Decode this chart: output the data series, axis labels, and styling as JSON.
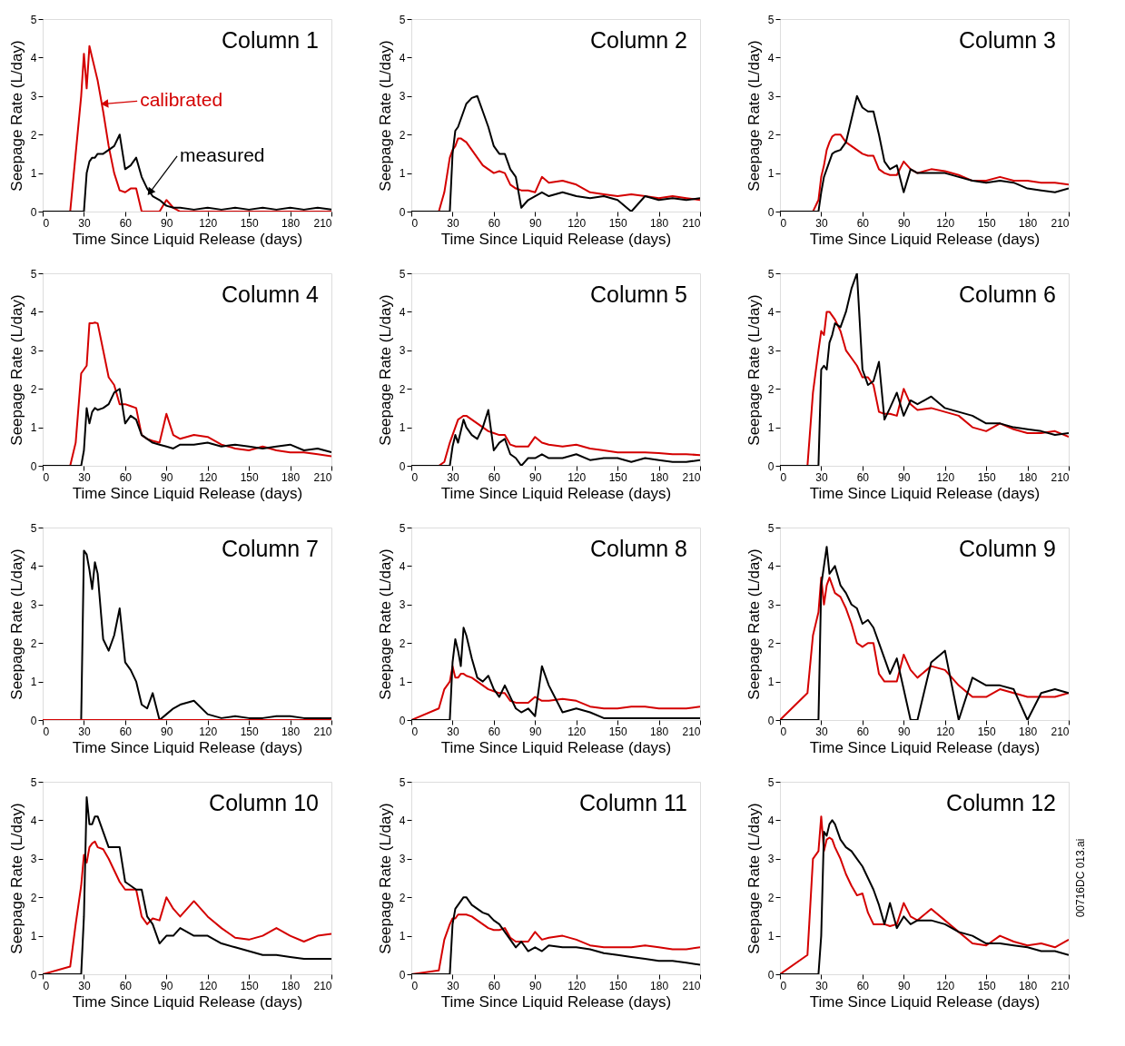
{
  "chart_data": [
    {
      "type": "line",
      "title": "Column 1",
      "xlabel": "Time Since Liquid Release (days)",
      "ylabel": "Seepage Rate (L/day)",
      "xlim": [
        0,
        210
      ],
      "xticks": [
        0,
        30,
        60,
        90,
        120,
        150,
        180,
        210
      ],
      "ylim": [
        0,
        5
      ],
      "yticks": [
        0,
        1,
        2,
        3,
        4,
        5
      ],
      "x": [
        0,
        20,
        24,
        28,
        30,
        32,
        34,
        36,
        38,
        40,
        44,
        48,
        52,
        56,
        60,
        64,
        68,
        72,
        76,
        80,
        85,
        90,
        95,
        100,
        110,
        120,
        130,
        140,
        150,
        160,
        170,
        180,
        190,
        200,
        210
      ],
      "series": [
        {
          "color": "#d40000",
          "values": [
            0,
            0,
            1.5,
            3.0,
            4.1,
            3.2,
            4.3,
            4.0,
            3.7,
            3.4,
            2.6,
            1.7,
            1.0,
            0.55,
            0.5,
            0.6,
            0.6,
            0,
            0,
            0,
            0,
            0.3,
            0.1,
            0,
            0,
            0,
            0,
            0,
            0,
            0,
            0,
            0,
            0,
            0,
            0
          ]
        },
        {
          "color": "#000000",
          "values": [
            0,
            0,
            0,
            0,
            0,
            1.0,
            1.3,
            1.4,
            1.4,
            1.5,
            1.5,
            1.6,
            1.7,
            2.0,
            1.1,
            1.2,
            1.4,
            0.9,
            0.6,
            0.4,
            0.3,
            0.15,
            0.1,
            0.1,
            0.05,
            0.1,
            0.05,
            0.1,
            0.05,
            0.1,
            0.05,
            0.1,
            0.05,
            0.1,
            0.05
          ]
        }
      ],
      "annotations": [
        {
          "text": "calibrated",
          "x": 45,
          "y": 2.8
        },
        {
          "text": "measured",
          "x": 78,
          "y": 0.5
        }
      ]
    },
    {
      "type": "line",
      "title": "Column 2",
      "xlabel": "Time Since Liquid Release (days)",
      "ylabel": "Seepage Rate (L/day)",
      "xlim": [
        0,
        210
      ],
      "xticks": [
        0,
        30,
        60,
        90,
        120,
        150,
        180,
        210
      ],
      "ylim": [
        0,
        5
      ],
      "yticks": [
        0,
        1,
        2,
        3,
        4,
        5
      ],
      "x": [
        0,
        20,
        24,
        28,
        30,
        32,
        34,
        36,
        38,
        40,
        44,
        48,
        52,
        56,
        60,
        64,
        68,
        72,
        76,
        80,
        85,
        90,
        95,
        100,
        110,
        120,
        130,
        140,
        150,
        160,
        170,
        180,
        190,
        200,
        210
      ],
      "series": [
        {
          "color": "#d40000",
          "values": [
            0,
            0,
            0.5,
            1.4,
            1.6,
            1.7,
            1.9,
            1.9,
            1.85,
            1.8,
            1.6,
            1.4,
            1.2,
            1.1,
            1.0,
            1.05,
            1.0,
            0.7,
            0.6,
            0.55,
            0.55,
            0.5,
            0.9,
            0.75,
            0.8,
            0.7,
            0.5,
            0.45,
            0.4,
            0.45,
            0.4,
            0.35,
            0.4,
            0.35,
            0.3
          ]
        },
        {
          "color": "#000000",
          "values": [
            0,
            0,
            0,
            0,
            1.5,
            2.1,
            2.2,
            2.4,
            2.6,
            2.8,
            2.95,
            3.0,
            2.6,
            2.2,
            1.7,
            1.5,
            1.5,
            1.1,
            0.9,
            0.1,
            0.3,
            0.4,
            0.5,
            0.4,
            0.5,
            0.4,
            0.35,
            0.4,
            0.3,
            0,
            0.4,
            0.3,
            0.35,
            0.3,
            0.35
          ]
        }
      ]
    },
    {
      "type": "line",
      "title": "Column 3",
      "xlabel": "Time Since Liquid Release (days)",
      "ylabel": "Seepage Rate (L/day)",
      "xlim": [
        0,
        210
      ],
      "xticks": [
        0,
        30,
        60,
        90,
        120,
        150,
        180,
        210
      ],
      "ylim": [
        0,
        5
      ],
      "yticks": [
        0,
        1,
        2,
        3,
        4,
        5
      ],
      "x": [
        0,
        20,
        24,
        28,
        30,
        32,
        34,
        36,
        38,
        40,
        44,
        48,
        52,
        56,
        60,
        64,
        68,
        72,
        76,
        80,
        85,
        90,
        95,
        100,
        110,
        120,
        130,
        140,
        150,
        160,
        170,
        180,
        190,
        200,
        210
      ],
      "series": [
        {
          "color": "#d40000",
          "values": [
            0,
            0,
            0,
            0.3,
            0.9,
            1.2,
            1.6,
            1.8,
            1.95,
            2.0,
            2.0,
            1.8,
            1.7,
            1.6,
            1.5,
            1.45,
            1.45,
            1.1,
            1.0,
            0.95,
            0.95,
            1.3,
            1.1,
            1.0,
            1.1,
            1.05,
            0.95,
            0.8,
            0.8,
            0.9,
            0.8,
            0.8,
            0.75,
            0.75,
            0.7
          ]
        },
        {
          "color": "#000000",
          "values": [
            0,
            0,
            0,
            0,
            0.5,
            0.9,
            1.1,
            1.3,
            1.5,
            1.55,
            1.6,
            1.8,
            2.4,
            3.0,
            2.7,
            2.6,
            2.6,
            2.0,
            1.3,
            1.1,
            1.2,
            0.5,
            1.1,
            1.0,
            1.0,
            1.0,
            0.9,
            0.8,
            0.75,
            0.8,
            0.75,
            0.6,
            0.55,
            0.5,
            0.6
          ]
        }
      ]
    },
    {
      "type": "line",
      "title": "Column 4",
      "xlabel": "Time Since Liquid Release (days)",
      "ylabel": "Seepage Rate (L/day)",
      "xlim": [
        0,
        210
      ],
      "xticks": [
        0,
        30,
        60,
        90,
        120,
        150,
        180,
        210
      ],
      "ylim": [
        0,
        5
      ],
      "yticks": [
        0,
        1,
        2,
        3,
        4,
        5
      ],
      "x": [
        0,
        20,
        24,
        28,
        30,
        32,
        34,
        36,
        38,
        40,
        44,
        48,
        52,
        56,
        60,
        64,
        68,
        72,
        76,
        80,
        85,
        90,
        95,
        100,
        110,
        120,
        130,
        140,
        150,
        160,
        170,
        180,
        190,
        200,
        210
      ],
      "series": [
        {
          "color": "#d40000",
          "values": [
            0,
            0,
            0.6,
            2.4,
            2.5,
            2.6,
            3.7,
            3.7,
            3.72,
            3.7,
            3.0,
            2.3,
            2.1,
            1.6,
            1.6,
            1.55,
            1.5,
            0.8,
            0.7,
            0.65,
            0.6,
            1.35,
            0.8,
            0.7,
            0.8,
            0.75,
            0.55,
            0.45,
            0.4,
            0.5,
            0.4,
            0.35,
            0.35,
            0.3,
            0.25
          ]
        },
        {
          "color": "#000000",
          "values": [
            0,
            0,
            0,
            0,
            0.4,
            1.5,
            1.1,
            1.4,
            1.5,
            1.45,
            1.5,
            1.6,
            1.9,
            2.0,
            1.1,
            1.3,
            1.2,
            0.8,
            0.7,
            0.6,
            0.55,
            0.5,
            0.45,
            0.55,
            0.55,
            0.6,
            0.5,
            0.55,
            0.5,
            0.45,
            0.5,
            0.55,
            0.4,
            0.45,
            0.35
          ]
        }
      ]
    },
    {
      "type": "line",
      "title": "Column 5",
      "xlabel": "Time Since Liquid Release (days)",
      "ylabel": "Seepage Rate (L/day)",
      "xlim": [
        0,
        210
      ],
      "xticks": [
        0,
        30,
        60,
        90,
        120,
        150,
        180,
        210
      ],
      "ylim": [
        0,
        5
      ],
      "yticks": [
        0,
        1,
        2,
        3,
        4,
        5
      ],
      "x": [
        0,
        20,
        24,
        28,
        30,
        32,
        34,
        36,
        38,
        40,
        44,
        48,
        52,
        56,
        60,
        64,
        68,
        72,
        76,
        80,
        85,
        90,
        95,
        100,
        110,
        120,
        130,
        140,
        150,
        160,
        170,
        180,
        190,
        200,
        210
      ],
      "series": [
        {
          "color": "#d40000",
          "values": [
            0,
            0,
            0.1,
            0.6,
            0.8,
            1.0,
            1.2,
            1.25,
            1.3,
            1.3,
            1.2,
            1.1,
            1.0,
            0.9,
            0.85,
            0.8,
            0.8,
            0.55,
            0.5,
            0.5,
            0.5,
            0.75,
            0.6,
            0.55,
            0.5,
            0.55,
            0.45,
            0.4,
            0.35,
            0.35,
            0.35,
            0.33,
            0.3,
            0.3,
            0.28
          ]
        },
        {
          "color": "#000000",
          "values": [
            0,
            0,
            0,
            0,
            0.5,
            0.8,
            0.6,
            0.9,
            1.2,
            1.0,
            0.8,
            0.7,
            1.0,
            1.45,
            0.4,
            0.6,
            0.7,
            0.3,
            0.2,
            0,
            0.2,
            0.2,
            0.3,
            0.2,
            0.2,
            0.3,
            0.15,
            0.2,
            0.2,
            0.1,
            0.2,
            0.15,
            0.1,
            0.1,
            0.15
          ]
        }
      ]
    },
    {
      "type": "line",
      "title": "Column 6",
      "xlabel": "Time Since Liquid Release (days)",
      "ylabel": "Seepage Rate (L/day)",
      "xlim": [
        0,
        210
      ],
      "xticks": [
        0,
        30,
        60,
        90,
        120,
        150,
        180,
        210
      ],
      "ylim": [
        0,
        5
      ],
      "yticks": [
        0,
        1,
        2,
        3,
        4,
        5
      ],
      "x": [
        0,
        20,
        24,
        28,
        30,
        32,
        34,
        36,
        38,
        40,
        44,
        48,
        52,
        56,
        60,
        64,
        68,
        72,
        76,
        80,
        85,
        90,
        95,
        100,
        110,
        120,
        130,
        140,
        150,
        160,
        170,
        180,
        190,
        200,
        210
      ],
      "series": [
        {
          "color": "#d40000",
          "values": [
            0,
            0,
            1.9,
            3.0,
            3.5,
            3.4,
            4.0,
            4.0,
            3.9,
            3.8,
            3.5,
            3.0,
            2.8,
            2.6,
            2.3,
            2.3,
            2.1,
            1.4,
            1.35,
            1.35,
            1.3,
            2.0,
            1.6,
            1.45,
            1.5,
            1.4,
            1.3,
            1.0,
            0.9,
            1.1,
            0.95,
            0.85,
            0.85,
            0.9,
            0.75
          ]
        },
        {
          "color": "#000000",
          "values": [
            0,
            0,
            0,
            0,
            2.5,
            2.6,
            2.5,
            3.2,
            3.4,
            3.7,
            3.6,
            4.0,
            4.6,
            5.0,
            2.5,
            2.1,
            2.2,
            2.7,
            1.2,
            1.5,
            1.9,
            1.3,
            1.7,
            1.6,
            1.8,
            1.5,
            1.4,
            1.3,
            1.1,
            1.1,
            1.0,
            0.95,
            0.9,
            0.8,
            0.85
          ]
        }
      ]
    },
    {
      "type": "line",
      "title": "Column 7",
      "xlabel": "Time Since Liquid Release (days)",
      "ylabel": "Seepage Rate (L/day)",
      "xlim": [
        0,
        210
      ],
      "xticks": [
        0,
        30,
        60,
        90,
        120,
        150,
        180,
        210
      ],
      "ylim": [
        0,
        5
      ],
      "yticks": [
        0,
        1,
        2,
        3,
        4,
        5
      ],
      "x": [
        0,
        20,
        24,
        28,
        30,
        32,
        34,
        36,
        38,
        40,
        44,
        48,
        52,
        56,
        60,
        64,
        68,
        72,
        76,
        80,
        85,
        90,
        95,
        100,
        110,
        120,
        130,
        140,
        150,
        160,
        170,
        180,
        190,
        200,
        210
      ],
      "series": [
        {
          "color": "#000000",
          "values": [
            0,
            0,
            0,
            0,
            4.4,
            4.3,
            3.9,
            3.4,
            4.1,
            3.8,
            2.1,
            1.8,
            2.2,
            2.9,
            1.5,
            1.3,
            1.0,
            0.4,
            0.3,
            0.7,
            0,
            0.15,
            0.3,
            0.4,
            0.5,
            0.15,
            0.05,
            0.1,
            0.05,
            0.05,
            0.1,
            0.1,
            0.05,
            0.05,
            0.05
          ]
        },
        {
          "color": "#d40000",
          "values": [
            0,
            0,
            0,
            0,
            0,
            0,
            0,
            0,
            0,
            0,
            0,
            0,
            0,
            0,
            0,
            0,
            0,
            0,
            0,
            0,
            0,
            0,
            0,
            0,
            0,
            0,
            0,
            0,
            0,
            0,
            0,
            0,
            0,
            0,
            0
          ]
        }
      ]
    },
    {
      "type": "line",
      "title": "Column 8",
      "xlabel": "Time Since Liquid Release (days)",
      "ylabel": "Seepage Rate (L/day)",
      "xlim": [
        0,
        210
      ],
      "xticks": [
        0,
        30,
        60,
        90,
        120,
        150,
        180,
        210
      ],
      "ylim": [
        0,
        5
      ],
      "yticks": [
        0,
        1,
        2,
        3,
        4,
        5
      ],
      "x": [
        0,
        20,
        24,
        28,
        30,
        32,
        34,
        36,
        38,
        40,
        44,
        48,
        52,
        56,
        60,
        64,
        68,
        72,
        76,
        80,
        85,
        90,
        95,
        100,
        110,
        120,
        130,
        140,
        150,
        160,
        170,
        180,
        190,
        200,
        210
      ],
      "series": [
        {
          "color": "#d40000",
          "values": [
            0,
            0.3,
            0.8,
            1.0,
            1.4,
            1.1,
            1.1,
            1.2,
            1.2,
            1.15,
            1.1,
            1.0,
            0.9,
            0.8,
            0.75,
            0.7,
            0.7,
            0.5,
            0.45,
            0.45,
            0.45,
            0.6,
            0.5,
            0.5,
            0.55,
            0.5,
            0.35,
            0.3,
            0.3,
            0.35,
            0.35,
            0.3,
            0.3,
            0.3,
            0.35
          ]
        },
        {
          "color": "#000000",
          "values": [
            0,
            0,
            0,
            0,
            1.5,
            2.1,
            1.8,
            1.4,
            2.4,
            2.2,
            1.6,
            1.1,
            1.0,
            1.15,
            0.8,
            0.6,
            0.9,
            0.6,
            0.3,
            0.2,
            0.3,
            0.1,
            1.4,
            0.9,
            0.2,
            0.3,
            0.2,
            0.05,
            0.05,
            0.05,
            0.05,
            0.05,
            0.05,
            0.05,
            0.05
          ]
        }
      ]
    },
    {
      "type": "line",
      "title": "Column 9",
      "xlabel": "Time Since Liquid Release (days)",
      "ylabel": "Seepage Rate (L/day)",
      "xlim": [
        0,
        210
      ],
      "xticks": [
        0,
        30,
        60,
        90,
        120,
        150,
        180,
        210
      ],
      "ylim": [
        0,
        5
      ],
      "yticks": [
        0,
        1,
        2,
        3,
        4,
        5
      ],
      "x": [
        0,
        20,
        24,
        28,
        30,
        32,
        34,
        36,
        38,
        40,
        44,
        48,
        52,
        56,
        60,
        64,
        68,
        72,
        76,
        80,
        85,
        90,
        95,
        100,
        110,
        120,
        130,
        140,
        150,
        160,
        170,
        180,
        190,
        200,
        210
      ],
      "series": [
        {
          "color": "#d40000",
          "values": [
            0,
            0.7,
            2.2,
            2.8,
            3.7,
            3.0,
            3.5,
            3.7,
            3.5,
            3.3,
            3.2,
            2.9,
            2.5,
            2.0,
            1.9,
            2.0,
            2.0,
            1.2,
            1.0,
            1.0,
            1.0,
            1.7,
            1.3,
            1.1,
            1.4,
            1.3,
            0.9,
            0.6,
            0.6,
            0.8,
            0.7,
            0.6,
            0.6,
            0.6,
            0.7
          ]
        },
        {
          "color": "#000000",
          "values": [
            0,
            0,
            0,
            0,
            3.5,
            4.0,
            4.5,
            3.8,
            3.9,
            4.0,
            3.5,
            3.3,
            3.0,
            2.9,
            2.5,
            2.6,
            2.4,
            2.0,
            1.6,
            1.2,
            1.6,
            0.8,
            0,
            0,
            1.5,
            1.8,
            0,
            1.1,
            0.9,
            0.9,
            0.8,
            0,
            0.7,
            0.8,
            0.7
          ]
        }
      ]
    },
    {
      "type": "line",
      "title": "Column 10",
      "xlabel": "Time Since Liquid Release (days)",
      "ylabel": "Seepage Rate (L/day)",
      "xlim": [
        0,
        210
      ],
      "xticks": [
        0,
        30,
        60,
        90,
        120,
        150,
        180,
        210
      ],
      "ylim": [
        0,
        5
      ],
      "yticks": [
        0,
        1,
        2,
        3,
        4,
        5
      ],
      "x": [
        0,
        20,
        24,
        28,
        30,
        32,
        34,
        36,
        38,
        40,
        44,
        48,
        52,
        56,
        60,
        64,
        68,
        72,
        76,
        80,
        85,
        90,
        95,
        100,
        110,
        120,
        130,
        140,
        150,
        160,
        170,
        180,
        190,
        200,
        210
      ],
      "series": [
        {
          "color": "#d40000",
          "values": [
            0,
            0.2,
            1.3,
            2.3,
            3.1,
            2.9,
            3.3,
            3.4,
            3.45,
            3.3,
            3.25,
            3.0,
            2.7,
            2.4,
            2.2,
            2.2,
            2.2,
            1.5,
            1.3,
            1.45,
            1.4,
            2.0,
            1.7,
            1.5,
            1.9,
            1.5,
            1.2,
            0.95,
            0.9,
            1.0,
            1.2,
            1.0,
            0.85,
            1.0,
            1.05
          ]
        },
        {
          "color": "#000000",
          "values": [
            0,
            0,
            0,
            0,
            1.5,
            4.6,
            3.9,
            3.9,
            4.1,
            4.1,
            3.7,
            3.3,
            3.3,
            3.3,
            2.4,
            2.3,
            2.2,
            2.2,
            1.5,
            1.3,
            0.8,
            1.0,
            1.0,
            1.2,
            1.0,
            1.0,
            0.8,
            0.7,
            0.6,
            0.5,
            0.5,
            0.45,
            0.4,
            0.4,
            0.4
          ]
        }
      ]
    },
    {
      "type": "line",
      "title": "Column 11",
      "xlabel": "Time Since Liquid Release (days)",
      "ylabel": "Seepage Rate (L/day)",
      "xlim": [
        0,
        210
      ],
      "xticks": [
        0,
        30,
        60,
        90,
        120,
        150,
        180,
        210
      ],
      "ylim": [
        0,
        5
      ],
      "yticks": [
        0,
        1,
        2,
        3,
        4,
        5
      ],
      "x": [
        0,
        20,
        24,
        28,
        30,
        32,
        34,
        36,
        38,
        40,
        44,
        48,
        52,
        56,
        60,
        64,
        68,
        72,
        76,
        80,
        85,
        90,
        95,
        100,
        110,
        120,
        130,
        140,
        150,
        160,
        170,
        180,
        190,
        200,
        210
      ],
      "series": [
        {
          "color": "#d40000",
          "values": [
            0,
            0.1,
            0.9,
            1.3,
            1.45,
            1.45,
            1.55,
            1.55,
            1.55,
            1.55,
            1.5,
            1.4,
            1.3,
            1.2,
            1.15,
            1.15,
            1.2,
            0.95,
            0.85,
            0.85,
            0.85,
            1.1,
            0.9,
            0.95,
            1.0,
            0.9,
            0.75,
            0.7,
            0.7,
            0.7,
            0.75,
            0.7,
            0.65,
            0.65,
            0.7
          ]
        },
        {
          "color": "#000000",
          "values": [
            0,
            0,
            0,
            0,
            1.3,
            1.7,
            1.8,
            1.9,
            2.0,
            2.0,
            1.8,
            1.7,
            1.6,
            1.55,
            1.4,
            1.3,
            1.1,
            0.9,
            0.7,
            0.85,
            0.6,
            0.7,
            0.6,
            0.75,
            0.7,
            0.7,
            0.65,
            0.55,
            0.5,
            0.45,
            0.4,
            0.35,
            0.35,
            0.3,
            0.25
          ]
        }
      ]
    },
    {
      "type": "line",
      "title": "Column 12",
      "xlabel": "Time Since Liquid Release (days)",
      "ylabel": "Seepage Rate (L/day)",
      "xlim": [
        0,
        210
      ],
      "xticks": [
        0,
        30,
        60,
        90,
        120,
        150,
        180,
        210
      ],
      "ylim": [
        0,
        5
      ],
      "yticks": [
        0,
        1,
        2,
        3,
        4,
        5
      ],
      "x": [
        0,
        20,
        24,
        28,
        30,
        32,
        34,
        36,
        38,
        40,
        44,
        48,
        52,
        56,
        60,
        64,
        68,
        72,
        76,
        80,
        85,
        90,
        95,
        100,
        110,
        120,
        130,
        140,
        150,
        160,
        170,
        180,
        190,
        200,
        210
      ],
      "series": [
        {
          "color": "#d40000",
          "values": [
            0,
            0.5,
            3.0,
            3.2,
            4.1,
            3.2,
            3.5,
            3.55,
            3.5,
            3.3,
            3.0,
            2.6,
            2.3,
            2.05,
            2.1,
            1.6,
            1.3,
            1.3,
            1.3,
            1.25,
            1.3,
            1.85,
            1.5,
            1.4,
            1.7,
            1.4,
            1.1,
            0.8,
            0.75,
            1.0,
            0.85,
            0.75,
            0.8,
            0.7,
            0.9
          ]
        },
        {
          "color": "#000000",
          "values": [
            0,
            0,
            0,
            0,
            1.0,
            3.7,
            3.6,
            3.9,
            4.0,
            3.9,
            3.5,
            3.3,
            3.2,
            3.0,
            2.8,
            2.5,
            2.2,
            1.8,
            1.3,
            1.85,
            1.2,
            1.5,
            1.3,
            1.4,
            1.4,
            1.3,
            1.1,
            1.0,
            0.8,
            0.8,
            0.75,
            0.7,
            0.6,
            0.6,
            0.5
          ]
        }
      ],
      "annotations": [
        "00716DC  013.ai"
      ]
    }
  ]
}
